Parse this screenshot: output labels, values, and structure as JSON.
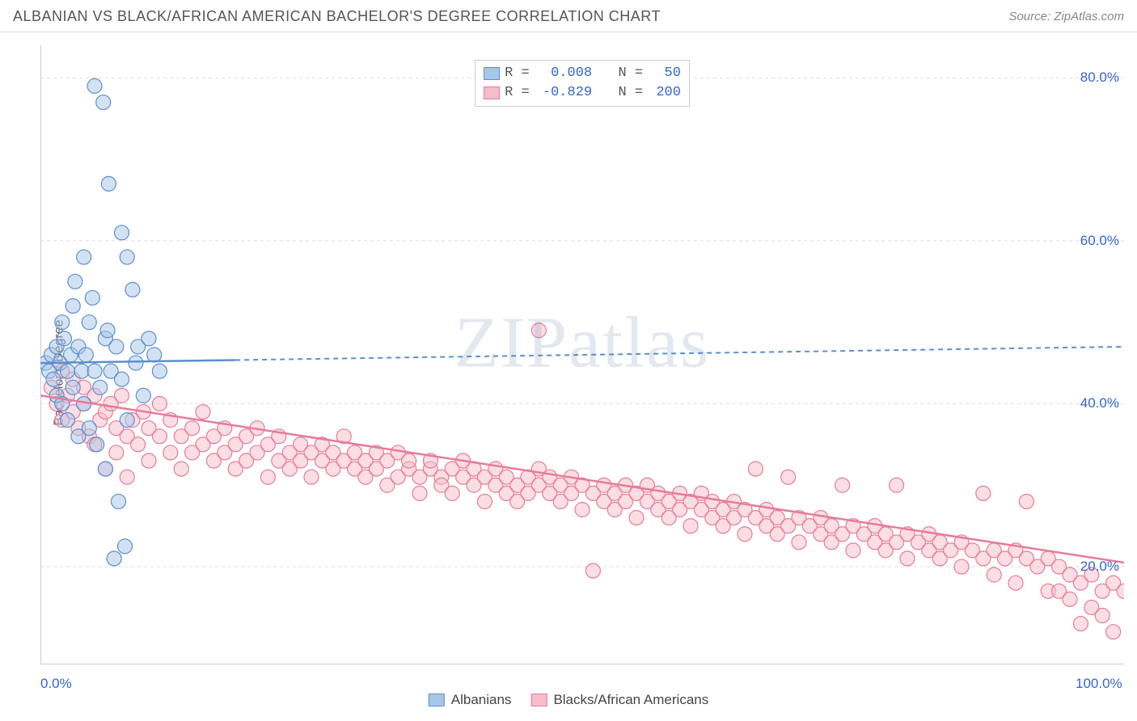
{
  "title": "ALBANIAN VS BLACK/AFRICAN AMERICAN BACHELOR'S DEGREE CORRELATION CHART",
  "source": "Source: ZipAtlas.com",
  "watermark": "ZIPatlas",
  "y_axis_label": "Bachelor's Degree",
  "chart": {
    "type": "scatter",
    "xlim": [
      0,
      100
    ],
    "ylim": [
      8,
      84
    ],
    "x_ticks": [
      0,
      100
    ],
    "x_tick_labels": [
      "0.0%",
      "100.0%"
    ],
    "x_minor_ticks": [
      12,
      24,
      36,
      48,
      60,
      72,
      84
    ],
    "y_ticks": [
      20,
      40,
      60,
      80
    ],
    "y_tick_labels": [
      "20.0%",
      "40.0%",
      "60.0%",
      "80.0%"
    ],
    "background_color": "#ffffff",
    "grid_color": "#dddddd",
    "grid_dash": "4,4",
    "axis_color": "#bbbbbb",
    "tick_label_color": "#3366cc",
    "marker_radius": 9,
    "marker_stroke_width": 1.2,
    "series": [
      {
        "name": "Albanians",
        "fill": "#a8c6e8",
        "stroke": "#5b8fd0",
        "fill_opacity": 0.5,
        "trend": {
          "slope": 0.02,
          "intercept": 45.0,
          "solid_until_x": 18,
          "stroke_width": 2.5,
          "dash": "6,5"
        },
        "points": [
          [
            0.5,
            45
          ],
          [
            0.8,
            44
          ],
          [
            1.0,
            46
          ],
          [
            1.2,
            43
          ],
          [
            1.5,
            47
          ],
          [
            1.5,
            41
          ],
          [
            1.8,
            45
          ],
          [
            2.0,
            50
          ],
          [
            2.0,
            40
          ],
          [
            2.2,
            48
          ],
          [
            2.5,
            44
          ],
          [
            2.5,
            38
          ],
          [
            2.8,
            46
          ],
          [
            3.0,
            52
          ],
          [
            3.0,
            42
          ],
          [
            3.2,
            55
          ],
          [
            3.5,
            47
          ],
          [
            3.5,
            36
          ],
          [
            3.8,
            44
          ],
          [
            4.0,
            58
          ],
          [
            4.0,
            40
          ],
          [
            4.2,
            46
          ],
          [
            4.5,
            37
          ],
          [
            4.5,
            50
          ],
          [
            5.0,
            79
          ],
          [
            5.0,
            44
          ],
          [
            5.2,
            35
          ],
          [
            5.5,
            42
          ],
          [
            5.8,
            77
          ],
          [
            6.0,
            48
          ],
          [
            6.0,
            32
          ],
          [
            6.3,
            67
          ],
          [
            6.5,
            44
          ],
          [
            6.8,
            21
          ],
          [
            7.0,
            47
          ],
          [
            7.2,
            28
          ],
          [
            7.5,
            61
          ],
          [
            7.5,
            43
          ],
          [
            8.0,
            58
          ],
          [
            8.0,
            38
          ],
          [
            8.5,
            54
          ],
          [
            8.8,
            45
          ],
          [
            9.0,
            47
          ],
          [
            9.5,
            41
          ],
          [
            10.0,
            48
          ],
          [
            10.5,
            46
          ],
          [
            11.0,
            44
          ],
          [
            6.2,
            49
          ],
          [
            7.8,
            22.5
          ],
          [
            4.8,
            53
          ]
        ]
      },
      {
        "name": "Blacks/African Americans",
        "fill": "#f5bdc9",
        "stroke": "#e87a9a",
        "fill_opacity": 0.5,
        "trend": {
          "slope": -0.205,
          "intercept": 41.0,
          "solid_until_x": 100,
          "stroke_width": 2.5
        },
        "points": [
          [
            1,
            42
          ],
          [
            1.5,
            40
          ],
          [
            2,
            44
          ],
          [
            2,
            38
          ],
          [
            2.5,
            41
          ],
          [
            3,
            39
          ],
          [
            3,
            43
          ],
          [
            3.5,
            37
          ],
          [
            4,
            42
          ],
          [
            4,
            40
          ],
          [
            4.5,
            36
          ],
          [
            5,
            35
          ],
          [
            5,
            41
          ],
          [
            5.5,
            38
          ],
          [
            6,
            39
          ],
          [
            6,
            32
          ],
          [
            6.5,
            40
          ],
          [
            7,
            37
          ],
          [
            7,
            34
          ],
          [
            7.5,
            41
          ],
          [
            8,
            36
          ],
          [
            8,
            31
          ],
          [
            8.5,
            38
          ],
          [
            9,
            35
          ],
          [
            9.5,
            39
          ],
          [
            10,
            37
          ],
          [
            10,
            33
          ],
          [
            11,
            36
          ],
          [
            11,
            40
          ],
          [
            12,
            34
          ],
          [
            12,
            38
          ],
          [
            13,
            36
          ],
          [
            13,
            32
          ],
          [
            14,
            37
          ],
          [
            14,
            34
          ],
          [
            15,
            35
          ],
          [
            15,
            39
          ],
          [
            16,
            33
          ],
          [
            16,
            36
          ],
          [
            17,
            34
          ],
          [
            17,
            37
          ],
          [
            18,
            35
          ],
          [
            18,
            32
          ],
          [
            19,
            36
          ],
          [
            19,
            33
          ],
          [
            20,
            34
          ],
          [
            20,
            37
          ],
          [
            21,
            35
          ],
          [
            21,
            31
          ],
          [
            22,
            33
          ],
          [
            22,
            36
          ],
          [
            23,
            34
          ],
          [
            23,
            32
          ],
          [
            24,
            35
          ],
          [
            24,
            33
          ],
          [
            25,
            34
          ],
          [
            25,
            31
          ],
          [
            26,
            33
          ],
          [
            26,
            35
          ],
          [
            27,
            32
          ],
          [
            27,
            34
          ],
          [
            28,
            33
          ],
          [
            28,
            36
          ],
          [
            29,
            32
          ],
          [
            29,
            34
          ],
          [
            30,
            33
          ],
          [
            30,
            31
          ],
          [
            31,
            32
          ],
          [
            31,
            34
          ],
          [
            32,
            33
          ],
          [
            32,
            30
          ],
          [
            33,
            31
          ],
          [
            33,
            34
          ],
          [
            34,
            32
          ],
          [
            34,
            33
          ],
          [
            35,
            31
          ],
          [
            35,
            29
          ],
          [
            36,
            32
          ],
          [
            36,
            33
          ],
          [
            37,
            31
          ],
          [
            37,
            30
          ],
          [
            38,
            32
          ],
          [
            38,
            29
          ],
          [
            39,
            31
          ],
          [
            39,
            33
          ],
          [
            40,
            30
          ],
          [
            40,
            32
          ],
          [
            41,
            31
          ],
          [
            41,
            28
          ],
          [
            42,
            30
          ],
          [
            42,
            32
          ],
          [
            43,
            29
          ],
          [
            43,
            31
          ],
          [
            44,
            30
          ],
          [
            44,
            28
          ],
          [
            45,
            31
          ],
          [
            45,
            29
          ],
          [
            46,
            30
          ],
          [
            46,
            32
          ],
          [
            46,
            49
          ],
          [
            47,
            29
          ],
          [
            47,
            31
          ],
          [
            48,
            30
          ],
          [
            48,
            28
          ],
          [
            49,
            29
          ],
          [
            49,
            31
          ],
          [
            50,
            30
          ],
          [
            50,
            27
          ],
          [
            51,
            29
          ],
          [
            51,
            19.5
          ],
          [
            52,
            28
          ],
          [
            52,
            30
          ],
          [
            53,
            29
          ],
          [
            53,
            27
          ],
          [
            54,
            28
          ],
          [
            54,
            30
          ],
          [
            55,
            29
          ],
          [
            55,
            26
          ],
          [
            56,
            28
          ],
          [
            56,
            30
          ],
          [
            57,
            27
          ],
          [
            57,
            29
          ],
          [
            58,
            28
          ],
          [
            58,
            26
          ],
          [
            59,
            27
          ],
          [
            59,
            29
          ],
          [
            60,
            28
          ],
          [
            60,
            25
          ],
          [
            61,
            27
          ],
          [
            61,
            29
          ],
          [
            62,
            26
          ],
          [
            62,
            28
          ],
          [
            63,
            27
          ],
          [
            63,
            25
          ],
          [
            64,
            26
          ],
          [
            64,
            28
          ],
          [
            65,
            27
          ],
          [
            65,
            24
          ],
          [
            66,
            26
          ],
          [
            66,
            32
          ],
          [
            67,
            25
          ],
          [
            67,
            27
          ],
          [
            68,
            26
          ],
          [
            68,
            24
          ],
          [
            69,
            25
          ],
          [
            69,
            31
          ],
          [
            70,
            26
          ],
          [
            70,
            23
          ],
          [
            71,
            25
          ],
          [
            72,
            24
          ],
          [
            72,
            26
          ],
          [
            73,
            25
          ],
          [
            73,
            23
          ],
          [
            74,
            24
          ],
          [
            74,
            30
          ],
          [
            75,
            25
          ],
          [
            75,
            22
          ],
          [
            76,
            24
          ],
          [
            77,
            23
          ],
          [
            77,
            25
          ],
          [
            78,
            24
          ],
          [
            78,
            22
          ],
          [
            79,
            23
          ],
          [
            79,
            30
          ],
          [
            80,
            24
          ],
          [
            80,
            21
          ],
          [
            81,
            23
          ],
          [
            82,
            22
          ],
          [
            82,
            24
          ],
          [
            83,
            23
          ],
          [
            83,
            21
          ],
          [
            84,
            22
          ],
          [
            85,
            23
          ],
          [
            85,
            20
          ],
          [
            86,
            22
          ],
          [
            87,
            21
          ],
          [
            87,
            29
          ],
          [
            88,
            22
          ],
          [
            88,
            19
          ],
          [
            89,
            21
          ],
          [
            90,
            22
          ],
          [
            90,
            18
          ],
          [
            91,
            21
          ],
          [
            91,
            28
          ],
          [
            92,
            20
          ],
          [
            93,
            21
          ],
          [
            93,
            17
          ],
          [
            94,
            20
          ],
          [
            94,
            17
          ],
          [
            95,
            19
          ],
          [
            95,
            16
          ],
          [
            96,
            13
          ],
          [
            96,
            18
          ],
          [
            97,
            15
          ],
          [
            97,
            19
          ],
          [
            98,
            17
          ],
          [
            98,
            14
          ],
          [
            99,
            18
          ],
          [
            99,
            12
          ],
          [
            100,
            17
          ]
        ]
      }
    ]
  },
  "stats": [
    {
      "swatch_fill": "#a8c6e8",
      "swatch_stroke": "#5b8fd0",
      "r_label": "R =",
      "r": "  0.008",
      "n_label": "N =",
      "n": "  50"
    },
    {
      "swatch_fill": "#f5bdc9",
      "swatch_stroke": "#e87a9a",
      "r_label": "R =",
      "r": " -0.829",
      "n_label": "N =",
      "n": " 200"
    }
  ],
  "legend": [
    {
      "swatch_fill": "#a8c6e8",
      "swatch_stroke": "#5b8fd0",
      "label": "Albanians"
    },
    {
      "swatch_fill": "#f5bdc9",
      "swatch_stroke": "#e87a9a",
      "label": "Blacks/African Americans"
    }
  ]
}
